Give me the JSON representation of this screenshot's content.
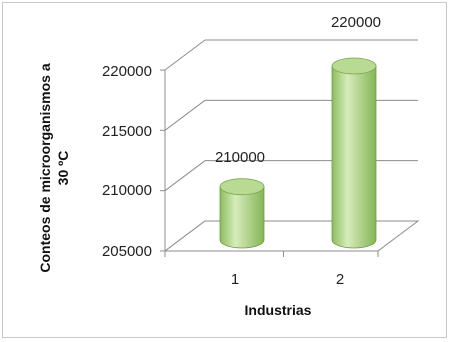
{
  "chart_data": {
    "type": "bar",
    "style": "3d-cylinder",
    "categories": [
      "1",
      "2"
    ],
    "series": [
      {
        "values": [
          210000,
          220000
        ],
        "color": "#9fca72"
      }
    ],
    "data_labels": [
      "210000",
      "220000"
    ],
    "y_ticks": [
      "205000",
      "210000",
      "215000",
      "220000"
    ],
    "ylim": [
      205000,
      220000
    ],
    "xlabel": "Industrias",
    "ylabel_lines": [
      "Conteos de microorganismos a",
      "30 ºC"
    ],
    "grid": true,
    "legend": "none"
  }
}
